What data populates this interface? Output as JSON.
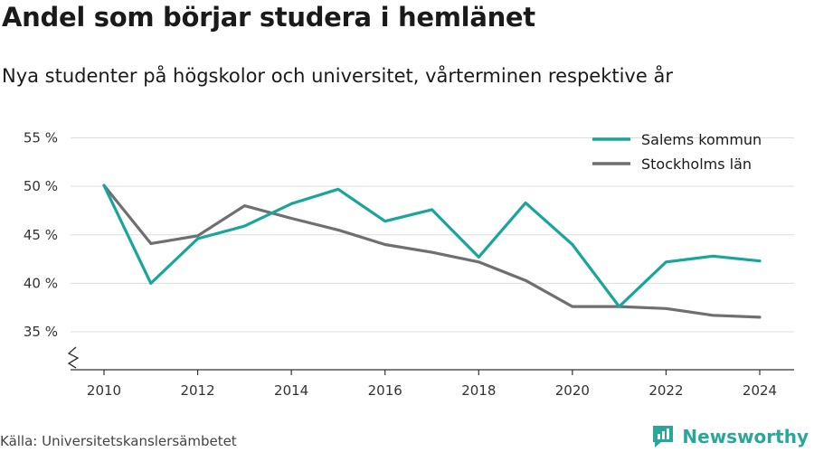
{
  "header": {
    "title": "Andel som börjar studera i hemlänet",
    "subtitle": "Nya studenter på högskolor och universitet, vårterminen respektive år"
  },
  "footer": {
    "source": "Källa: Universitetskanslersämbetet",
    "brand": "Newsworthy"
  },
  "colors": {
    "salem": "#1aa59a",
    "stockholm": "#6f6e73",
    "grid": "#dddddd",
    "brand": "#2aa79b"
  },
  "chart_data": {
    "type": "line",
    "x": [
      2010,
      2011,
      2012,
      2013,
      2014,
      2015,
      2016,
      2017,
      2018,
      2019,
      2020,
      2021,
      2022,
      2023,
      2024
    ],
    "x_ticks": [
      2010,
      2012,
      2014,
      2016,
      2018,
      2020,
      2022,
      2024
    ],
    "y_ticks": [
      35,
      40,
      45,
      50,
      55
    ],
    "y_tick_labels": [
      "35 %",
      "40 %",
      "45 %",
      "50 %",
      "55 %"
    ],
    "ylim": [
      31,
      55
    ],
    "grid": true,
    "axis_break": true,
    "legend_position": "top-right",
    "series": [
      {
        "name": "Salems kommun",
        "color": "#1aa59a",
        "values": [
          50.1,
          40.0,
          44.6,
          45.9,
          48.2,
          49.7,
          46.4,
          47.6,
          42.7,
          48.3,
          44.0,
          37.6,
          42.2,
          42.8,
          42.3
        ]
      },
      {
        "name": "Stockholms län",
        "color": "#6f6e73",
        "values": [
          50.1,
          44.1,
          44.9,
          48.0,
          46.7,
          45.5,
          44.0,
          43.2,
          42.2,
          40.3,
          37.6,
          37.6,
          37.4,
          36.7,
          36.5
        ]
      }
    ]
  }
}
